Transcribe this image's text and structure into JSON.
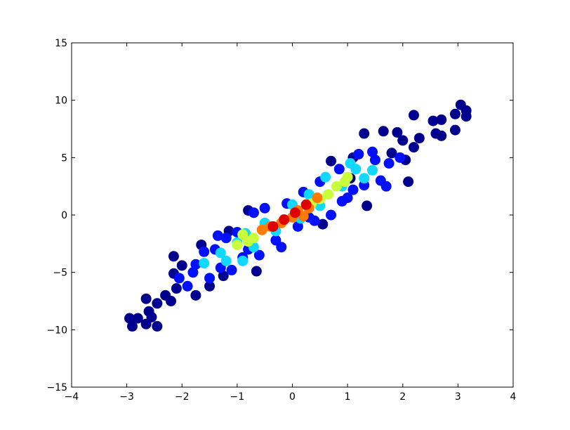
{
  "chart_data": {
    "type": "scatter",
    "xlim": [
      -4,
      4
    ],
    "ylim": [
      -15,
      15
    ],
    "xticks": [
      {
        "value": -4,
        "label": "−4"
      },
      {
        "value": -3,
        "label": "−3"
      },
      {
        "value": -2,
        "label": "−2"
      },
      {
        "value": -1,
        "label": "−1"
      },
      0,
      1,
      2,
      3,
      4
    ],
    "yticks": [
      {
        "value": -15,
        "label": "−15"
      },
      {
        "value": -10,
        "label": "−10"
      },
      {
        "value": -5,
        "label": "−5"
      },
      0,
      5,
      10,
      15
    ],
    "series": [
      {
        "color": "#00008f",
        "x": [
          -2.95,
          -2.9,
          -2.8,
          -2.65,
          -2.6,
          -2.55,
          -2.65,
          -2.45,
          -2.45,
          -2.3,
          -2.2,
          -2.15,
          -2.15,
          -2.1,
          -2.0,
          -1.75,
          -1.65,
          -1.15,
          -0.8,
          -0.65,
          0.7,
          1.1,
          1.3,
          1.65,
          1.35,
          1.9,
          2.0,
          2.05,
          2.1,
          2.2,
          2.3,
          2.55,
          2.6,
          2.7,
          2.7,
          2.95,
          2.95,
          3.05,
          3.15,
          3.15,
          1.8,
          2.2,
          1.05,
          0.55,
          -1.25,
          -1.5
        ],
        "values": [
          -9,
          -9.7,
          -9,
          -9.5,
          -8.4,
          -8.9,
          -7.3,
          -9.7,
          -7.7,
          -7.0,
          -7.5,
          -3.6,
          -5.1,
          -6.4,
          -4.4,
          -7.0,
          -2.6,
          -1.4,
          0.4,
          -4.9,
          4.7,
          5.0,
          7.1,
          7.3,
          0.8,
          7.2,
          6.5,
          4.8,
          2.9,
          8.7,
          6.7,
          8.2,
          7.1,
          8.3,
          6.9,
          7.4,
          8.8,
          9.6,
          9.1,
          8.6,
          5.4,
          5.9,
          3.2,
          -0.8,
          -5.3,
          -6.2
        ]
      },
      {
        "color": "#0010ff",
        "x": [
          -2.05,
          -1.9,
          -1.8,
          -1.75,
          -1.6,
          -1.5,
          -1.4,
          -1.3,
          -1.2,
          -1.1,
          -1.0,
          -0.9,
          -0.7,
          -0.6,
          -0.5,
          -0.3,
          -0.1,
          0.1,
          0.2,
          0.4,
          0.5,
          0.7,
          0.85,
          1.0,
          1.2,
          1.3,
          1.45,
          1.6,
          1.75,
          1.5,
          -0.2,
          0.3,
          0.9,
          1.1,
          -1.35,
          -0.8,
          1.95,
          1.7
        ],
        "values": [
          -5.5,
          -6.2,
          -5.0,
          -4.3,
          -3.2,
          -5.5,
          -3.0,
          -4.6,
          -2.0,
          -4.8,
          -1.5,
          -3.7,
          0.2,
          -3.5,
          0.6,
          -2.2,
          1.0,
          -1.0,
          2.0,
          -0.5,
          2.9,
          0.0,
          4.0,
          1.5,
          5.3,
          2.6,
          5.5,
          3.0,
          4.5,
          4.8,
          -2.8,
          -0.2,
          1.2,
          2.2,
          -1.8,
          -3.0,
          5.0,
          2.5
        ]
      },
      {
        "color": "#10d8ff",
        "x": [
          -1.6,
          -1.3,
          -1.2,
          -1.0,
          -0.85,
          -0.7,
          -0.5,
          -0.3,
          0.0,
          0.3,
          0.5,
          0.6,
          0.9,
          1.15,
          1.3,
          1.45,
          -0.9,
          1.05,
          0.15
        ],
        "values": [
          -4.2,
          -3.3,
          -4.0,
          -2.4,
          -1.6,
          -2.8,
          -0.7,
          -1.4,
          0.9,
          1.8,
          0.8,
          3.3,
          2.5,
          4.0,
          3.2,
          3.9,
          -4.0,
          4.5,
          -0.3
        ]
      },
      {
        "color": "#c8ff3a",
        "x": [
          -1.0,
          -0.9,
          -0.7,
          0.5,
          0.8,
          0.95,
          0.65,
          1.0,
          0.35,
          -0.8
        ],
        "values": [
          -2.6,
          -1.7,
          -2.0,
          1.4,
          2.5,
          2.9,
          1.8,
          3.3,
          1.0,
          -2.3
        ]
      },
      {
        "color": "#ff7a00",
        "x": [
          -0.55,
          -0.4,
          -0.2,
          0.0,
          0.1,
          0.3,
          0.45,
          0.2
        ],
        "values": [
          -1.3,
          -1.0,
          -0.7,
          -0.2,
          0.4,
          0.6,
          1.5,
          -0.1
        ]
      },
      {
        "color": "#e00000",
        "x": [
          -0.35,
          -0.15,
          0.05,
          0.25
        ],
        "values": [
          -1.0,
          -0.4,
          0.2,
          0.9
        ]
      }
    ]
  }
}
